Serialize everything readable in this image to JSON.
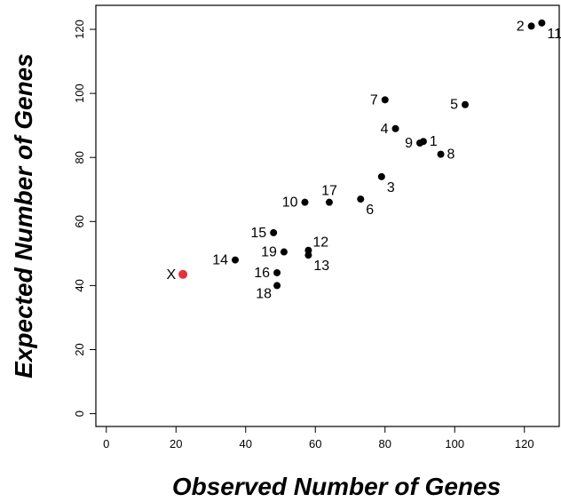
{
  "chart_data": {
    "type": "scatter",
    "xlabel": "Observed Number of Genes",
    "ylabel": "Expected Number of Genes",
    "xlim": [
      -3,
      130
    ],
    "ylim": [
      -4,
      127.5
    ],
    "xticks": [
      0,
      20,
      40,
      60,
      80,
      100,
      120
    ],
    "yticks": [
      0,
      20,
      40,
      60,
      80,
      100,
      120
    ],
    "grid": false,
    "colors": {
      "point": "#000000",
      "highlight": "#e8303a"
    },
    "points": [
      {
        "label": "1",
        "x": 91,
        "y": 85,
        "label_pos": "right"
      },
      {
        "label": "2",
        "x": 122,
        "y": 121,
        "label_pos": "left"
      },
      {
        "label": "3",
        "x": 79,
        "y": 74,
        "label_pos": "below-right"
      },
      {
        "label": "4",
        "x": 83,
        "y": 89,
        "label_pos": "left"
      },
      {
        "label": "5",
        "x": 103,
        "y": 96.5,
        "label_pos": "left"
      },
      {
        "label": "6",
        "x": 73,
        "y": 67,
        "label_pos": "below-right"
      },
      {
        "label": "7",
        "x": 80,
        "y": 98,
        "label_pos": "left"
      },
      {
        "label": "8",
        "x": 96,
        "y": 81,
        "label_pos": "right"
      },
      {
        "label": "9",
        "x": 90,
        "y": 84.5,
        "label_pos": "left"
      },
      {
        "label": "10",
        "x": 57,
        "y": 66,
        "label_pos": "left"
      },
      {
        "label": "11",
        "x": 125,
        "y": 122,
        "label_pos": "below-right"
      },
      {
        "label": "12",
        "x": 58,
        "y": 51,
        "label_pos": "above-right"
      },
      {
        "label": "13",
        "x": 58,
        "y": 49.5,
        "label_pos": "below-right"
      },
      {
        "label": "14",
        "x": 37,
        "y": 48,
        "label_pos": "left"
      },
      {
        "label": "15",
        "x": 48,
        "y": 56.5,
        "label_pos": "left"
      },
      {
        "label": "16",
        "x": 49,
        "y": 44,
        "label_pos": "left"
      },
      {
        "label": "17",
        "x": 64,
        "y": 66,
        "label_pos": "above"
      },
      {
        "label": "18",
        "x": 49,
        "y": 40,
        "label_pos": "below-left"
      },
      {
        "label": "19",
        "x": 51,
        "y": 50.5,
        "label_pos": "left"
      },
      {
        "label": "X",
        "x": 22,
        "y": 43.5,
        "label_pos": "left",
        "highlight": true
      }
    ]
  }
}
